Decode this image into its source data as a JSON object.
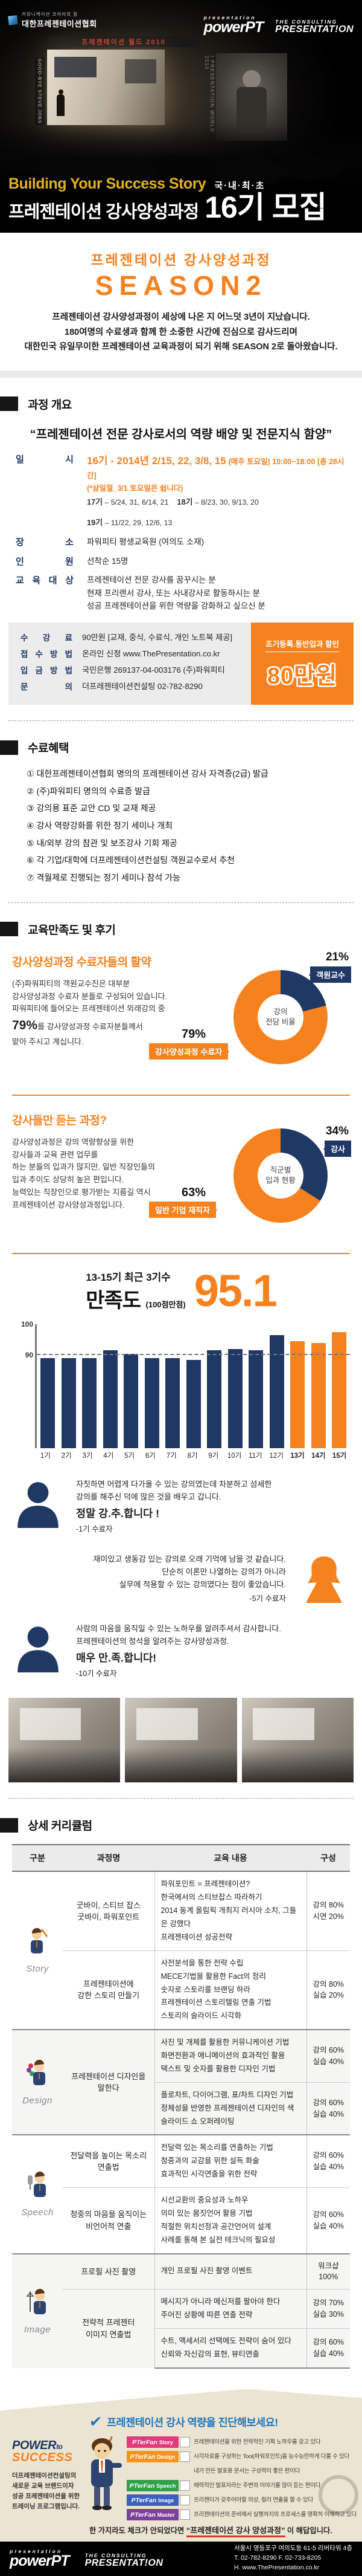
{
  "colors": {
    "orange": "#f5821f",
    "navy": "#1f3864",
    "gold": "#e3b122",
    "blue_heading": "#1b75bc",
    "red_underline": "#d03a2b",
    "beige": "#ece4d2",
    "story_pink": "#e23a7a",
    "design_orange": "#f7941d",
    "speech_green": "#2fa04c",
    "image_blue": "#3c5fc0",
    "master_purple": "#7d3f9d"
  },
  "header": {
    "assoc_logo": {
      "tagline": "커뮤니케이션 코리아의 힘",
      "name": "대한프레젠테이션협회"
    },
    "powerpt_logo": {
      "top": "presentation",
      "main": "powerPT"
    },
    "consulting_logo": {
      "top": "THE CONSULTING",
      "main": "PRESENTAT!ON"
    },
    "photo": {
      "banner": "프레젠테이션 월드 2010",
      "side_text": "I PRESENTATION WORLD 2010",
      "flag_text": "GOOD-BYE STEVE JOBS"
    },
    "tagline": "Building Your Success Story",
    "badge": "국·내·최·초",
    "title": "프레젠테이션 강사양성과정",
    "cohort": "16기 모집"
  },
  "intro": {
    "subtitle": "프레젠테이션 강사양성과정",
    "season": "SEASON2",
    "body": "프레젠테이션 강사양성과정이 세상에 나온 지 어느덧 3년이 지났습니다.\n180여명의 수료생과 함께 한 소중한 시간에 진심으로 감사드리며\n대한민국 유일무이한 프레젠테이션 교육과정이 되기 위해 SEASON 2로 돌아왔습니다."
  },
  "overview": {
    "section_title": "과정 개요",
    "quote": "“프레젠테이션 전문 강사로서의 역량 배양 및 전문지식 함양”",
    "schedule_label": "일 시",
    "schedule_main": "16기 - 2014년 2/15, 22, 3/8, 15",
    "schedule_sub": "(매주 토요일) 10:00~18:00 [총 28시간]",
    "schedule_note": "(*삼일절_3/1 토요일은 쉽니다)",
    "schedule_others": [
      {
        "k": "17기",
        "v": "– 5/24, 31, 6/14, 21"
      },
      {
        "k": "18기",
        "v": "– 8/23, 30, 9/13, 20"
      },
      {
        "k": "19기",
        "v": "– 11/22, 29, 12/6, 13"
      }
    ],
    "place_label": "장 소",
    "place": "파워피티 평생교육원 (여의도 소재)",
    "capacity_label": "인 원",
    "capacity": "선착순 15명",
    "audience_label": "교 육 대 상",
    "audience": "프레젠테이션 전문 강사를 꿈꾸시는 분\n현재 프리랜서 강사, 또는 사내강사로 활동하시는 분\n성공 프레젠테이션을 위한 역량을 강화하고 싶으신 분",
    "fee_box": {
      "fee_label": "수 강 료",
      "fee": "90만원 [교재, 중식, 수료식, 개인 노트북 제공]",
      "apply_label": "접 수 방 법",
      "apply_prefix": "온라인 신청",
      "apply_url": "www.ThePresentation.co.kr",
      "deposit_label": "입 금 방 법",
      "deposit": "국민은행 269137-04-003176 (주)파워피티",
      "contact_label": "문 의",
      "contact": "더프레젠테이션컨설팅 02-782-8290"
    },
    "discount": {
      "title": "조기등록.동반입과 할인",
      "price": "80만원"
    }
  },
  "benefits": {
    "section_title": "수료혜택",
    "items": [
      "① 대한프레젠테이션협회 명의의 프레젠테이션 강사 자격증(2급) 발급",
      "② (주)파워피티 명의의 수료증 발급",
      "③ 강의용 표준 교안 CD 및 교재 제공",
      "④ 강사 역량강화를 위한 정기 세미나 개최",
      "⑤ 내/외부 강의 참관 및 보조강사 기회 제공",
      "⑥ 각 기업/대학에 더프레젠테이션컨설팅 객원교수로서 추천",
      "⑦ 격월제로 진행되는 정기 세미나 참석 가능"
    ]
  },
  "satisfaction": {
    "section_title": "교육만족도 및 후기",
    "block1": {
      "title": "강사양성과정 수료자들의 활약",
      "body_before": "(주)파워피티의 객원교수진은 대부분\n강사양성과정 수료자 분들로 구성되어 있습니다.\n파워피티에 들어오는 프레젠테이션 외래강의 중\n",
      "emphasis": "79%",
      "body_after": "를 강사양성과정 수료자분들께서\n맡아 주시고 계십니다.",
      "donut": {
        "center": "강의\n전담 비율",
        "right_pct": "21%",
        "right_label": "객원교수",
        "left_pct": "79%",
        "left_label": "강사양성과정 수료자"
      }
    },
    "block2": {
      "title": "강사들만 듣는 과정?",
      "body": "강사양성과정은 강의 역량향상을 위한\n강사들과 교육 관련 업무를\n하는 분들의 입과가 많지만, 일반 직장인들의\n입과 추이도 상당히 높은 편입니다.\n능력있는 직장인으로 평가받는 지름길 역시\n프레젠테이션 강사양성과정입니다.",
      "donut": {
        "center": "직군별\n입과 현황",
        "right_pct": "34%",
        "right_label": "강사",
        "left_pct": "63%",
        "left_label": "일반 기업 재직자"
      }
    },
    "score": {
      "line1": "13-15기 최근 3기수",
      "line2": "만족도",
      "line2_sub": "(100점만점)",
      "value": "95.1"
    }
  },
  "chart_data": [
    {
      "type": "donut",
      "title": "강의 전담 비율",
      "slices": [
        {
          "label": "강사양성과정 수료자",
          "value": 79,
          "color": "#f5821f"
        },
        {
          "label": "객원교수",
          "value": 21,
          "color": "#1f3864"
        }
      ],
      "legend_position": "callout-labels"
    },
    {
      "type": "donut",
      "title": "직군별 입과 현황",
      "slices": [
        {
          "label": "일반 기업 재직자",
          "value": 63,
          "color": "#f5821f"
        },
        {
          "label": "강사",
          "value": 34,
          "color": "#1f3864"
        }
      ],
      "legend_position": "callout-labels"
    },
    {
      "type": "bar",
      "title": "기수별 만족도 (100점 만점)",
      "categories": [
        "1기",
        "2기",
        "3기",
        "4기",
        "5기",
        "6기",
        "7기",
        "8기",
        "9기",
        "10기",
        "11기",
        "12기",
        "13기",
        "14기",
        "15기"
      ],
      "values": [
        89,
        89,
        89,
        91.5,
        90.5,
        89,
        89,
        88.5,
        91.5,
        92,
        91.5,
        96.5,
        94.5,
        94,
        97.5
      ],
      "highlight_indices": [
        12,
        13,
        14
      ],
      "bar_color": "#1f3864",
      "highlight_color": "#f5821f",
      "ylim": [
        60,
        100
      ],
      "yticks": [
        90,
        100
      ],
      "refline": 90,
      "grid": "dashed-refline-only",
      "annotation": "13-15기 최근 3기수 만족도 95.1"
    }
  ],
  "testimonials": [
    {
      "text": "자칫하면 어렵게 다가올 수 있는 강의였는데 차분하고 섬세한\n강의를 해주신 덕에 많은 것을 배우고 갑니다.",
      "big": "정말 강.추.합니다 !",
      "who": "-1기 수료자"
    },
    {
      "text": "재미있고 생동감 있는 강의로 오래 기억에 남을 것 같습니다.\n단순히 이론만 나열하는 강의가 아니라\n실무에 적용할 수 있는 강의였다는 점이 좋았습니다.",
      "big": "",
      "who": "-5기 수료자"
    },
    {
      "text": "사람의 마음을 움직일 수 있는 노하우를 알려주셔서 감사합니다.\n프레젠테이션의 정석을 알려주는 강사양성과정.",
      "big": "매우 만.족.합니다!",
      "who": "-10기 수료자"
    }
  ],
  "curriculum": {
    "section_title": "상세 커리큘럼",
    "headers": [
      "구분",
      "과정명",
      "교육 내용",
      "구성"
    ],
    "groups": [
      {
        "name": "Story",
        "rows": [
          {
            "course": "굿바이, 스티브 잡스\n굿바이, 파워포인트",
            "content": "파워포인트 = 프레젠테이션?\n한국에서의 스티브잡스 따라하기\n2014 동계 올림픽 개최지 러시아 소치, 그들은 강했다\n프레젠테이션 성공전략",
            "comp": "강의 80%\n시연 20%"
          },
          {
            "course": "프레젠테이션에\n강한 스토리 만들기",
            "content": "사전분석을 통한 전략 수립\nMECE기법을 활용한 Fact의 정리\n숫자로 스토리를 브랜딩 하라\n프레젠테이션 스토리텔링 연출 기법\n스토리의 슬라이드 시각화",
            "comp": "강의 80%\n실습 20%"
          }
        ]
      },
      {
        "name": "Design",
        "rows": [
          {
            "course": "프레젠테이션 디자인을 말한다",
            "content": "사진 및 개체를 활용한 커뮤니케이션 기법\n화면전환과 애니메이션의 효과적인 활용\n텍스트 및 숫자를 활용한 디자인 기법",
            "comp": "강의 60%\n실습 40%"
          },
          {
            "course": "",
            "content": "플로차트, 다이어그램, 표/차트 디자인 기법\n정체성을 반영한 프레젠테이션 디자인의 색\n슬라이드 쇼 오퍼레이팅",
            "comp": "강의 60%\n실습 40%"
          }
        ]
      },
      {
        "name": "Speech",
        "rows": [
          {
            "course": "전달력을 높이는 목소리 연출법",
            "content": "전달력 있는 목소리를 연출하는 기법\n청중과의 교감을 위한 설득 화술\n효과적인 시각연출을 위한 전략",
            "comp": "강의 60%\n실습 40%"
          },
          {
            "course": "청중의 마음을 움직이는\n비언어적 연출",
            "content": "시선교환의 중요성과 노하우\n의미 있는 몸짓언어 활용 기법\n적절한 위치선정과 공간언어의 설계\n사례를 통해 본 실전 테크닉의 필요성",
            "comp": "강의 60%\n실습 40%"
          }
        ]
      },
      {
        "name": "Image",
        "rows": [
          {
            "course": "프로필 사진 촬영",
            "content": "개인 프로필 사진 촬영 이벤트",
            "comp": "워크샵 100%"
          },
          {
            "course": "전략적 프레젠터\n이미지 연출법",
            "content": "메시지가 아니라 메신저를 팔아야 한다\n주어진 상황에 따른 연출 전략",
            "comp": "강의 70%\n실습 30%"
          },
          {
            "course": "",
            "content": "수트, 액세서리 선택에도 전략이 숨어 있다\n신뢰와 자신감의 표현, 뷰티연출",
            "comp": "강의 60%\n실습 40%"
          }
        ]
      }
    ]
  },
  "footer_promo": {
    "pts_logo": {
      "word1": "POWER",
      "word2": "to",
      "word3": "SUCCESS"
    },
    "description": "더프레젠테이션컨설팅의\n새로운 교육 브랜드이자\n성공 프레젠테이션을 위한\n트레이닝 프로그램입니다.",
    "heading": "프레젠테이션 강사 역량을 진단해보세요!",
    "brand": "PTerFan",
    "checklist": [
      {
        "label": "Story",
        "text": "프레젠테이션을 위한 전략적인 기획 노하우를 갖고 있다"
      },
      {
        "label": "Design",
        "text": "시각자료를 구성하는 Tool(파워포인트)을 능수능란하게 다룰 수 있다"
      },
      {
        "label": "",
        "text": "내가 만든 발표용 문서는 구성력이 좋은 편이다"
      },
      {
        "label": "Speech",
        "text": "매력적인 발표자라는 주변의 이야기를 많이 듣는 편이다"
      },
      {
        "label": "Image",
        "text": "프리젠터가 갖추어야할 의상, 컬러 연출을 할 수 있다"
      },
      {
        "label": "Master",
        "text": "프리젠테이션의 준비에서 실행까지의 프로세스를 명확히 이해하고 있다"
      }
    ],
    "closing_before": "한 가지라도 체크가 안되었다면",
    "closing_quote": "“프레젠테이션 강사 양성과정”",
    "closing_after": "이 해답입니다."
  },
  "footer": {
    "powerpt_logo": {
      "top": "presentation",
      "main": "powerPT"
    },
    "consulting_logo": {
      "top": "THE CONSULTING",
      "main": "PRESENTAT!ON"
    },
    "address": "서울시 영등포구 여의도동 61-5 리버타워 4층",
    "tel": "T. 02-782-8290 F. 02-733-8205",
    "web": "H. www.ThePresentation.co.kr"
  }
}
